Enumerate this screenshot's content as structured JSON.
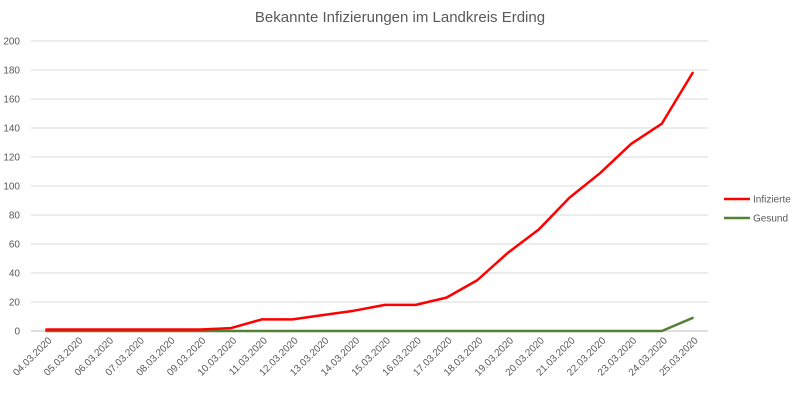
{
  "chart_data": {
    "type": "line",
    "title": "Bekannte Infizierungen im Landkreis Erding",
    "xlabel": "",
    "ylabel": "",
    "ylim": [
      0,
      200
    ],
    "yticks": [
      0,
      20,
      40,
      60,
      80,
      100,
      120,
      140,
      160,
      180,
      200
    ],
    "grid": true,
    "legend_position": "right",
    "categories": [
      "04.03.2020",
      "05.03.2020",
      "06.03.2020",
      "07.03.2020",
      "08.03.2020",
      "09.03.2020",
      "10.03.2020",
      "11.03.2020",
      "12.03.2020",
      "13.03.2020",
      "14.03.2020",
      "15.03.2020",
      "16.03.2020",
      "17.03.2020",
      "18.03.2020",
      "19.03.2020",
      "20.03.2020",
      "21.03.2020",
      "22.03.2020",
      "23.03.2020",
      "24.03.2020",
      "25.03.2020"
    ],
    "series": [
      {
        "name": "Infizierte",
        "color": "#ff0000",
        "values": [
          1,
          1,
          1,
          1,
          1,
          1,
          2,
          8,
          8,
          11,
          14,
          18,
          18,
          23,
          35,
          54,
          70,
          92,
          109,
          129,
          143,
          178
        ]
      },
      {
        "name": "Gesund",
        "color": "#548235",
        "values": [
          0,
          0,
          0,
          0,
          0,
          0,
          0,
          0,
          0,
          0,
          0,
          0,
          0,
          0,
          0,
          0,
          0,
          0,
          0,
          0,
          0,
          9
        ]
      }
    ]
  },
  "colors": {
    "grid": "#d9d9d9",
    "axis": "#bfbfbf",
    "text": "#595959"
  }
}
